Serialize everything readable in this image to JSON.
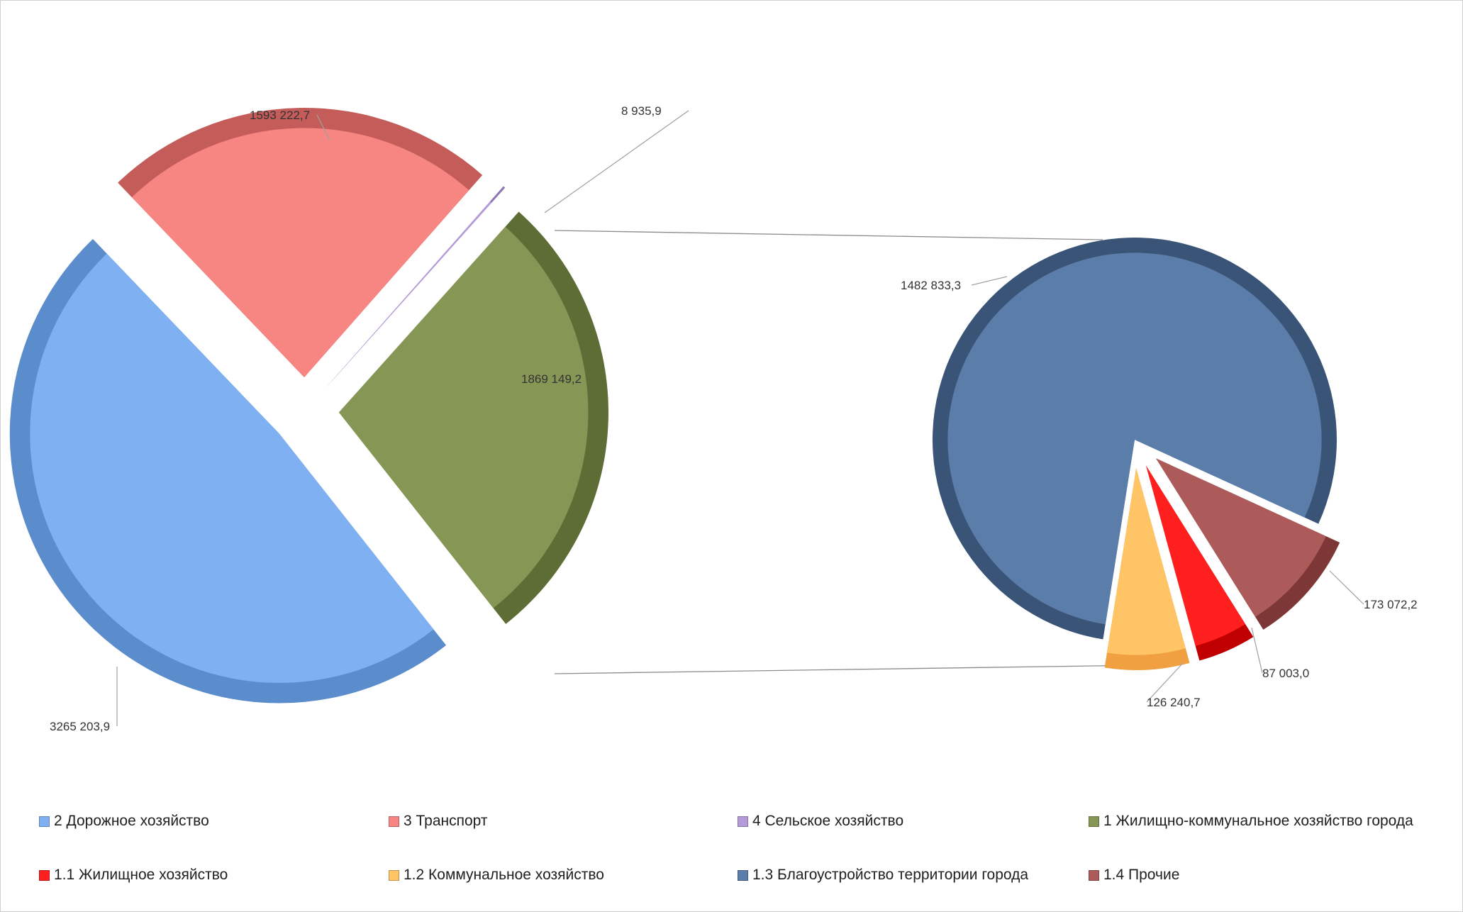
{
  "chart_data": {
    "type": "pie",
    "main_pie": {
      "slices": [
        {
          "label": "2 Дорожное хозяйство",
          "value": 3265203.9,
          "value_text": "3265 203,9",
          "color": "#7fb1f2",
          "edge": "#5b8ccc"
        },
        {
          "label": "3 Транспорт",
          "value": 1593222.7,
          "value_text": "1593 222,7",
          "color": "#f78581",
          "edge": "#c45c59"
        },
        {
          "label": "4 Сельское хозяйство",
          "value": 8935.9,
          "value_text": "8 935,9",
          "color": "#b49ad8",
          "edge": "#8d74b5"
        },
        {
          "label": "1 Жилищно-коммунальное  хозяйство города",
          "value": 1869149.2,
          "value_text": "1869 149,2",
          "color": "#869655",
          "edge": "#5e6d35"
        }
      ]
    },
    "detail_pie": {
      "of": "1 Жилищно-коммунальное  хозяйство города",
      "slices": [
        {
          "label": "1.3 Благоустройство территории города",
          "value": 1482833.3,
          "value_text": "1482 833,3",
          "color": "#5b7da9",
          "edge": "#3a5478"
        },
        {
          "label": "1.4 Прочие",
          "value": 173072.2,
          "value_text": "173 072,2",
          "color": "#ad5a5a",
          "edge": "#7e3737"
        },
        {
          "label": "1.1 Жилищное хозяйство",
          "value": 87003.0,
          "value_text": "87 003,0",
          "color": "#ff1f1f",
          "edge": "#c00000"
        },
        {
          "label": "1.2 Коммунальное хозяйство",
          "value": 126240.7,
          "value_text": "126 240,7",
          "color": "#ffc466",
          "edge": "#f0a040"
        }
      ]
    },
    "legend": [
      {
        "label": "2 Дорожное хозяйство",
        "color": "#7fb1f2"
      },
      {
        "label": "3 Транспорт",
        "color": "#f78581"
      },
      {
        "label": "4 Сельское хозяйство",
        "color": "#b49ad8"
      },
      {
        "label": "1 Жилищно-коммунальное  хозяйство города",
        "color": "#869655"
      },
      {
        "label": "1.1 Жилищное хозяйство",
        "color": "#ff1f1f"
      },
      {
        "label": "1.2 Коммунальное хозяйство",
        "color": "#ffc466"
      },
      {
        "label": "1.3 Благоустройство территории города",
        "color": "#5b7da9"
      },
      {
        "label": "1.4 Прочие",
        "color": "#ad5a5a"
      }
    ],
    "legend_placement": "bottom"
  }
}
